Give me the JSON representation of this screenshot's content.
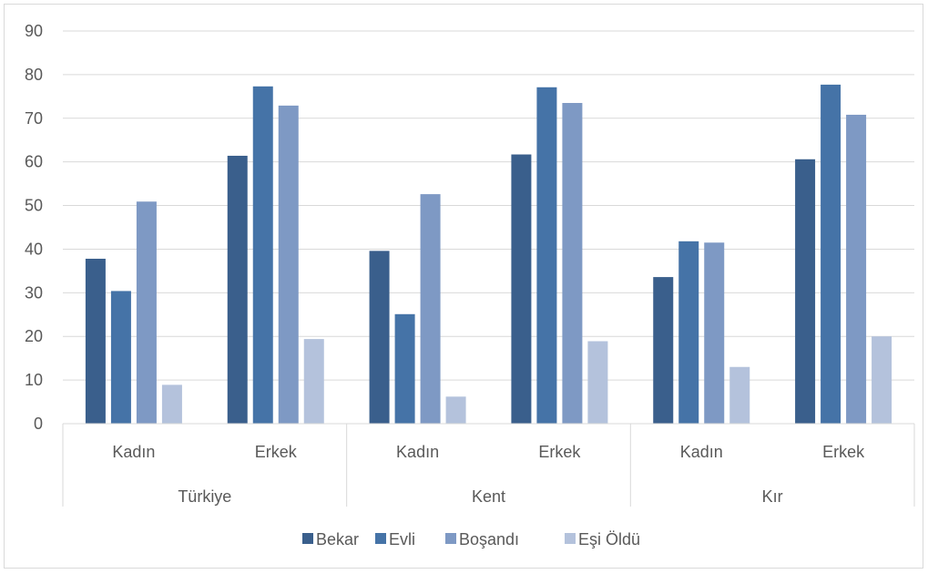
{
  "chart_data": {
    "type": "bar",
    "groups": [
      {
        "label": "Türkiye",
        "categories": [
          "Kadın",
          "Erkek"
        ]
      },
      {
        "label": "Kent",
        "categories": [
          "Kadın",
          "Erkek"
        ]
      },
      {
        "label": "Kır",
        "categories": [
          "Kadın",
          "Erkek"
        ]
      }
    ],
    "series": [
      {
        "name": "Bekar",
        "color": "#3a5f8c",
        "values": [
          37.8,
          61.4,
          39.6,
          61.7,
          33.6,
          60.6
        ]
      },
      {
        "name": "Evli",
        "color": "#4573a7",
        "values": [
          30.4,
          77.3,
          25.1,
          77.1,
          41.8,
          77.7
        ]
      },
      {
        "name": "Boşandı",
        "color": "#7e99c4",
        "values": [
          50.9,
          72.9,
          52.6,
          73.5,
          41.5,
          70.8
        ]
      },
      {
        "name": "Eşi Öldü",
        "color": "#b4c2dc",
        "values": [
          8.9,
          19.4,
          6.2,
          18.9,
          13.0,
          20.0
        ]
      }
    ],
    "ylim": [
      0,
      90
    ],
    "yticks": [
      0,
      10,
      20,
      30,
      40,
      50,
      60,
      70,
      80,
      90
    ],
    "grid": true,
    "legend": "bottom"
  }
}
